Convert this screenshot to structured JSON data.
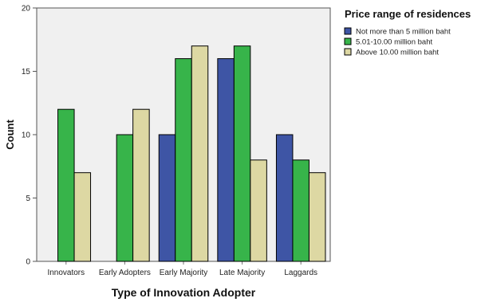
{
  "chart_data": {
    "type": "bar",
    "title": "",
    "xlabel": "Type of Innovation Adopter",
    "ylabel": "Count",
    "categories": [
      "Innovators",
      "Early Adopters",
      "Early Majority",
      "Late Majority",
      "Laggards"
    ],
    "series": [
      {
        "name": "Not more than 5 million baht",
        "color": "#3e55a5",
        "values": [
          0,
          0,
          10,
          16,
          10
        ]
      },
      {
        "name": "5.01-10.00 million baht",
        "color": "#37b44a",
        "values": [
          12,
          10,
          16,
          17,
          8
        ]
      },
      {
        "name": "Above 10.00 million baht",
        "color": "#ddd8a3",
        "values": [
          7,
          12,
          17,
          8,
          7
        ]
      }
    ],
    "ylim": [
      0,
      20
    ],
    "yticks": [
      0,
      5,
      10,
      15,
      20
    ],
    "grid": false,
    "plot_background": "#f0f0f0",
    "legend": {
      "title": "Price range of residences",
      "placement": "right-top"
    }
  }
}
